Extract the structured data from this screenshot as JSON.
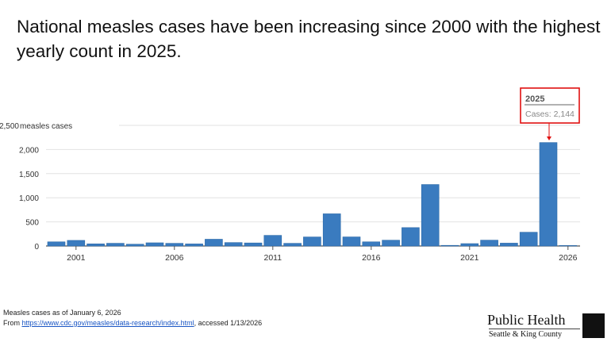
{
  "title": "National measles cases have been increasing since 2000 with the highest yearly count in 2025.",
  "chart_data": {
    "type": "bar",
    "ylabel": "measles cases",
    "ylim": [
      0,
      2500
    ],
    "yticks": [
      "0",
      "500",
      "1,000",
      "1,500",
      "2,000",
      "2,500"
    ],
    "xticks": [
      "2001",
      "2006",
      "2011",
      "2016",
      "2021",
      "2026"
    ],
    "grid": true,
    "bar_color": "#3a7bbf",
    "categories": [
      2000,
      2001,
      2002,
      2003,
      2004,
      2005,
      2006,
      2007,
      2008,
      2009,
      2010,
      2011,
      2012,
      2013,
      2014,
      2015,
      2016,
      2017,
      2018,
      2019,
      2020,
      2021,
      2022,
      2023,
      2024,
      2025,
      2026
    ],
    "values": [
      86,
      116,
      44,
      56,
      37,
      66,
      55,
      43,
      140,
      71,
      63,
      220,
      55,
      187,
      667,
      188,
      86,
      120,
      381,
      1274,
      13,
      49,
      121,
      59,
      285,
      2144,
      10
    ],
    "tooltip": {
      "year": "2025",
      "text": "Cases: 2,144"
    },
    "highlight_color": "#e01010"
  },
  "footer": {
    "note": "Measles cases as of January 6, 2026",
    "from": "From ",
    "link": "https://www.cdc.gov/measles/data-research/index.html",
    "accessed": ", accessed 1/13/2026"
  },
  "logo": {
    "name": "Public Health",
    "sub": "Seattle & King County"
  }
}
